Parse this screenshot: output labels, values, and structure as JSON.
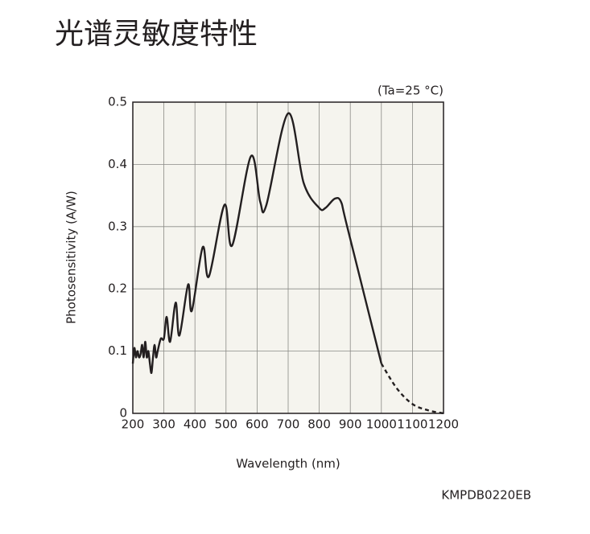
{
  "chart_data": {
    "type": "line",
    "title": "光谱灵敏度特性",
    "annotation": "(Ta=25 °C)",
    "code": "KMPDB0220EB",
    "x_label": "Wavelength (nm)",
    "y_label": "Photosensitivity (A/W)",
    "series": [
      {
        "color": "#231f20",
        "dash": false,
        "x": [
          200,
          205,
          210,
          215,
          220,
          225,
          230,
          235,
          240,
          245,
          250,
          255,
          260,
          265,
          270,
          275,
          280,
          290,
          300,
          309,
          320,
          338,
          350,
          378,
          390,
          425,
          445,
          495,
          520,
          580,
          610,
          630,
          700,
          750,
          800,
          820,
          850,
          870,
          890,
          1000
        ],
        "values": [
          0.08,
          0.105,
          0.09,
          0.1,
          0.09,
          0.095,
          0.11,
          0.09,
          0.115,
          0.09,
          0.1,
          0.08,
          0.065,
          0.09,
          0.11,
          0.09,
          0.1,
          0.12,
          0.12,
          0.155,
          0.115,
          0.178,
          0.125,
          0.207,
          0.165,
          0.267,
          0.22,
          0.335,
          0.27,
          0.413,
          0.34,
          0.335,
          0.482,
          0.37,
          0.33,
          0.33,
          0.345,
          0.34,
          0.3,
          0.08
        ]
      },
      {
        "color": "#231f20",
        "dash": true,
        "x": [
          1000,
          1050,
          1100,
          1150,
          1200
        ],
        "values": [
          0.08,
          0.04,
          0.015,
          0.005,
          0
        ]
      }
    ],
    "xlim": [
      200,
      1200
    ],
    "xticks": [
      200,
      300,
      400,
      500,
      600,
      700,
      800,
      900,
      1000,
      1100,
      1200
    ],
    "ylim": [
      0,
      0.5
    ],
    "yticks": [
      0,
      0.1,
      0.2,
      0.3,
      0.4,
      0.5
    ],
    "grid": true,
    "background": "#f5f4ee"
  }
}
